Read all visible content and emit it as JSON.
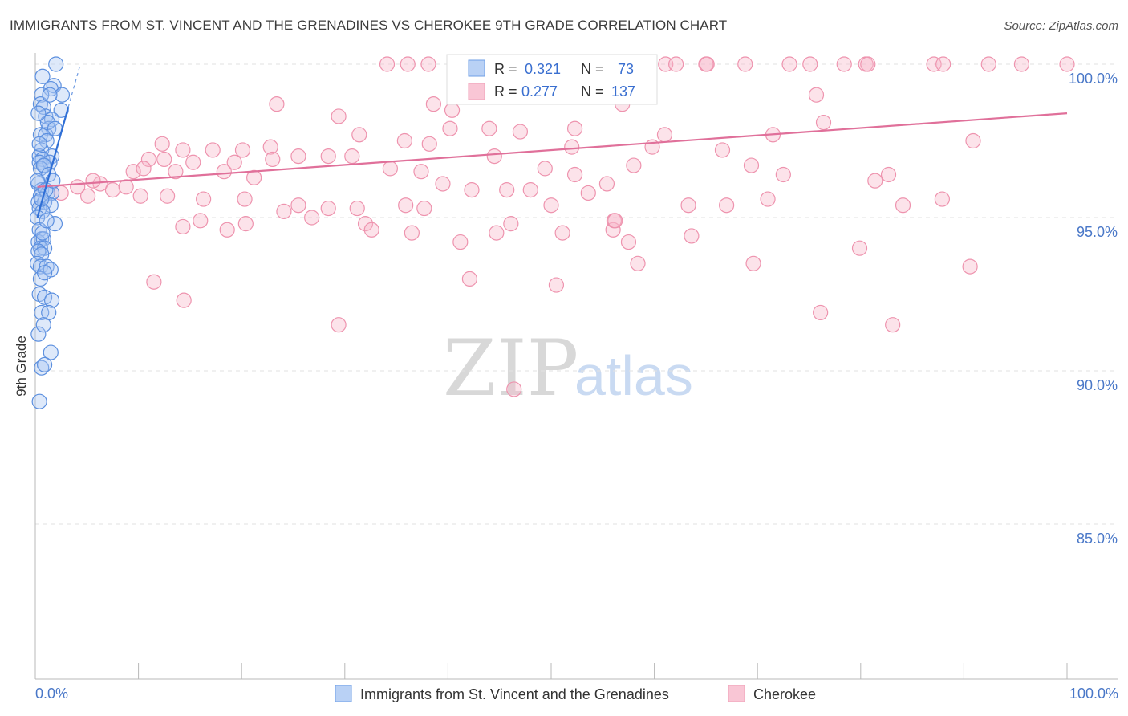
{
  "title": "IMMIGRANTS FROM ST. VINCENT AND THE GRENADINES VS CHEROKEE 9TH GRADE CORRELATION CHART",
  "source": "Source: ZipAtlas.com",
  "watermark": {
    "zip": "ZIP",
    "atlas": "atlas"
  },
  "colors": {
    "blue": "#6f9fe6",
    "blue_line": "#2f6fd6",
    "pink": "#f0a0b8",
    "pink_line": "#e0709a",
    "tick": "#4a78c8"
  },
  "stats": {
    "r_label": "R = ",
    "n_label": "N = ",
    "blue": {
      "r": "0.321",
      "n": "73"
    },
    "pink": {
      "r": "0.277",
      "n": "137"
    }
  },
  "chart_data": {
    "type": "scatter",
    "xlabel": "",
    "ylabel": "9th Grade",
    "x_tick_labels": [
      "0.0%",
      "100.0%"
    ],
    "y_tick_labels": [
      "100.0%",
      "95.0%",
      "90.0%",
      "85.0%"
    ],
    "xlim": [
      0,
      100
    ],
    "ylim": [
      80.5,
      100.5
    ],
    "y_ticks": [
      100,
      95,
      90,
      85
    ],
    "grid": "dashed horizontal",
    "legend_position": "bottom",
    "series": [
      {
        "name": "Immigrants from St. Vincent and the Grenadines",
        "color": "#6f9fe6",
        "trend": {
          "x": [
            0.2,
            3.2
          ],
          "y": [
            95.0,
            98.6
          ]
        },
        "points": [
          [
            2.0,
            100.0
          ],
          [
            0.7,
            99.6
          ],
          [
            1.8,
            99.3
          ],
          [
            1.5,
            99.2
          ],
          [
            0.6,
            99.0
          ],
          [
            2.6,
            99.0
          ],
          [
            0.5,
            98.7
          ],
          [
            0.8,
            98.6
          ],
          [
            2.5,
            98.5
          ],
          [
            1.0,
            98.3
          ],
          [
            1.6,
            98.2
          ],
          [
            1.3,
            97.9
          ],
          [
            0.5,
            97.7
          ],
          [
            1.0,
            97.7
          ],
          [
            1.1,
            97.5
          ],
          [
            0.6,
            97.2
          ],
          [
            0.4,
            97.0
          ],
          [
            1.6,
            97.0
          ],
          [
            0.7,
            96.9
          ],
          [
            0.4,
            96.8
          ],
          [
            0.9,
            96.7
          ],
          [
            1.4,
            96.8
          ],
          [
            0.5,
            96.6
          ],
          [
            0.8,
            96.7
          ],
          [
            1.3,
            96.4
          ],
          [
            0.3,
            96.1
          ],
          [
            0.6,
            95.9
          ],
          [
            1.2,
            95.8
          ],
          [
            0.5,
            95.7
          ],
          [
            1.6,
            95.8
          ],
          [
            0.3,
            95.5
          ],
          [
            0.9,
            95.5
          ],
          [
            1.5,
            95.4
          ],
          [
            0.4,
            95.3
          ],
          [
            0.7,
            95.2
          ],
          [
            0.2,
            95.0
          ],
          [
            1.9,
            94.8
          ],
          [
            0.4,
            94.6
          ],
          [
            0.6,
            94.3
          ],
          [
            0.3,
            94.2
          ],
          [
            0.8,
            94.3
          ],
          [
            0.5,
            94.0
          ],
          [
            0.9,
            94.0
          ],
          [
            0.3,
            93.9
          ],
          [
            0.6,
            93.8
          ],
          [
            0.2,
            93.5
          ],
          [
            0.5,
            93.4
          ],
          [
            1.1,
            93.4
          ],
          [
            1.5,
            93.3
          ],
          [
            0.4,
            92.5
          ],
          [
            0.9,
            92.4
          ],
          [
            1.6,
            92.3
          ],
          [
            0.6,
            91.9
          ],
          [
            1.3,
            91.9
          ],
          [
            0.3,
            91.2
          ],
          [
            1.5,
            90.6
          ],
          [
            0.6,
            90.1
          ],
          [
            0.9,
            90.2
          ],
          [
            0.4,
            89.0
          ],
          [
            0.2,
            96.2
          ],
          [
            1.0,
            95.9
          ],
          [
            0.7,
            94.5
          ],
          [
            1.2,
            98.1
          ],
          [
            0.4,
            97.4
          ],
          [
            1.9,
            97.9
          ],
          [
            0.5,
            93.0
          ],
          [
            0.8,
            91.5
          ],
          [
            1.1,
            94.9
          ],
          [
            0.3,
            98.4
          ],
          [
            1.4,
            99.0
          ],
          [
            0.6,
            95.6
          ],
          [
            0.9,
            93.2
          ],
          [
            1.7,
            96.2
          ]
        ]
      },
      {
        "name": "Cherokee",
        "color": "#f0a0b8",
        "trend": {
          "x": [
            0.2,
            100.0
          ],
          "y": [
            96.0,
            98.4
          ]
        },
        "points": [
          [
            34.1,
            100.0
          ],
          [
            36.1,
            100.0
          ],
          [
            38.1,
            100.0
          ],
          [
            42.7,
            100.0
          ],
          [
            48.5,
            100.0
          ],
          [
            49.6,
            100.0
          ],
          [
            51.6,
            100.0
          ],
          [
            52.7,
            100.0
          ],
          [
            56.7,
            100.0
          ],
          [
            61.1,
            100.0
          ],
          [
            62.1,
            100.0
          ],
          [
            65.0,
            100.0
          ],
          [
            68.8,
            100.0
          ],
          [
            73.1,
            100.0
          ],
          [
            75.1,
            100.0
          ],
          [
            78.4,
            100.0
          ],
          [
            80.5,
            100.0
          ],
          [
            80.7,
            100.0
          ],
          [
            87.1,
            100.0
          ],
          [
            92.4,
            100.0
          ],
          [
            95.6,
            100.0
          ],
          [
            100.0,
            100.0
          ],
          [
            88.0,
            100.0
          ],
          [
            45.0,
            100.0
          ],
          [
            58.5,
            100.0
          ],
          [
            65.1,
            100.0
          ],
          [
            23.4,
            98.7
          ],
          [
            29.4,
            98.3
          ],
          [
            38.6,
            98.7
          ],
          [
            40.4,
            98.5
          ],
          [
            43.5,
            99.0
          ],
          [
            56.9,
            98.7
          ],
          [
            75.7,
            99.0
          ],
          [
            31.4,
            97.7
          ],
          [
            35.8,
            97.5
          ],
          [
            38.2,
            97.4
          ],
          [
            40.2,
            97.9
          ],
          [
            44.0,
            97.9
          ],
          [
            47.0,
            97.8
          ],
          [
            52.3,
            97.9
          ],
          [
            61.0,
            97.7
          ],
          [
            71.5,
            97.7
          ],
          [
            76.4,
            98.1
          ],
          [
            90.9,
            97.5
          ],
          [
            12.3,
            97.4
          ],
          [
            14.3,
            97.2
          ],
          [
            17.2,
            97.2
          ],
          [
            20.1,
            97.2
          ],
          [
            22.8,
            97.3
          ],
          [
            25.5,
            97.0
          ],
          [
            28.4,
            97.0
          ],
          [
            30.7,
            97.0
          ],
          [
            11.0,
            96.9
          ],
          [
            12.5,
            96.9
          ],
          [
            15.3,
            96.8
          ],
          [
            19.3,
            96.8
          ],
          [
            23.0,
            96.9
          ],
          [
            37.4,
            96.5
          ],
          [
            44.5,
            97.0
          ],
          [
            52.0,
            97.3
          ],
          [
            59.8,
            97.3
          ],
          [
            66.6,
            97.2
          ],
          [
            9.5,
            96.5
          ],
          [
            10.5,
            96.6
          ],
          [
            13.6,
            96.5
          ],
          [
            18.3,
            96.5
          ],
          [
            21.2,
            96.3
          ],
          [
            34.4,
            96.6
          ],
          [
            39.5,
            96.1
          ],
          [
            42.3,
            95.9
          ],
          [
            48.0,
            95.9
          ],
          [
            49.4,
            96.6
          ],
          [
            52.3,
            96.4
          ],
          [
            53.6,
            95.8
          ],
          [
            55.4,
            96.1
          ],
          [
            58.0,
            96.7
          ],
          [
            69.4,
            96.7
          ],
          [
            72.5,
            96.4
          ],
          [
            82.7,
            96.4
          ],
          [
            6.3,
            96.1
          ],
          [
            7.5,
            95.9
          ],
          [
            8.8,
            96.0
          ],
          [
            10.2,
            95.7
          ],
          [
            12.8,
            95.7
          ],
          [
            16.3,
            95.6
          ],
          [
            20.3,
            95.6
          ],
          [
            25.5,
            95.4
          ],
          [
            28.4,
            95.3
          ],
          [
            31.2,
            95.3
          ],
          [
            35.9,
            95.4
          ],
          [
            37.7,
            95.3
          ],
          [
            45.7,
            95.9
          ],
          [
            50.0,
            95.4
          ],
          [
            63.3,
            95.4
          ],
          [
            67.0,
            95.4
          ],
          [
            71.0,
            95.6
          ],
          [
            81.4,
            96.2
          ],
          [
            84.1,
            95.4
          ],
          [
            87.9,
            95.6
          ],
          [
            2.5,
            95.8
          ],
          [
            4.1,
            96.0
          ],
          [
            5.1,
            95.7
          ],
          [
            5.6,
            96.2
          ],
          [
            14.3,
            94.7
          ],
          [
            16.0,
            94.9
          ],
          [
            18.6,
            94.6
          ],
          [
            20.4,
            94.8
          ],
          [
            24.1,
            95.2
          ],
          [
            26.8,
            95.0
          ],
          [
            32.0,
            94.8
          ],
          [
            32.6,
            94.6
          ],
          [
            36.5,
            94.5
          ],
          [
            41.2,
            94.2
          ],
          [
            44.7,
            94.5
          ],
          [
            46.1,
            94.8
          ],
          [
            51.1,
            94.5
          ],
          [
            56.0,
            94.6
          ],
          [
            56.1,
            94.9
          ],
          [
            56.2,
            94.9
          ],
          [
            57.5,
            94.2
          ],
          [
            58.4,
            93.5
          ],
          [
            63.6,
            94.4
          ],
          [
            69.6,
            93.5
          ],
          [
            79.9,
            94.0
          ],
          [
            90.6,
            93.4
          ],
          [
            11.5,
            92.9
          ],
          [
            14.4,
            92.3
          ],
          [
            29.4,
            91.5
          ],
          [
            42.1,
            93.0
          ],
          [
            50.5,
            92.8
          ],
          [
            76.1,
            91.9
          ],
          [
            83.1,
            91.5
          ],
          [
            46.4,
            89.4
          ]
        ]
      }
    ]
  }
}
